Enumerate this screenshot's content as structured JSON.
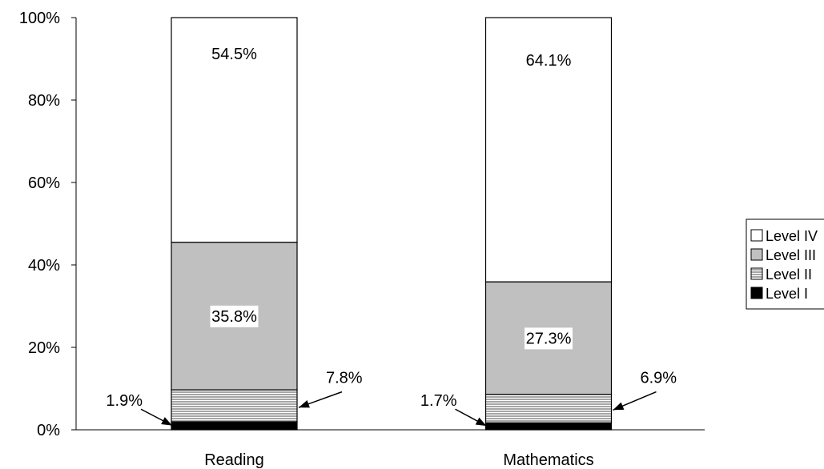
{
  "chart_data": {
    "type": "bar",
    "stacked": true,
    "categories": [
      "Reading",
      "Mathematics"
    ],
    "series": [
      {
        "name": "Level I",
        "values": [
          1.9,
          1.7
        ],
        "color": "#000000",
        "pattern": "solid"
      },
      {
        "name": "Level II",
        "values": [
          7.8,
          6.9
        ],
        "color": "#ffffff",
        "pattern": "horizontal-lines"
      },
      {
        "name": "Level III",
        "values": [
          35.8,
          27.3
        ],
        "color": "#c0c0c0",
        "pattern": "solid"
      },
      {
        "name": "Level IV",
        "values": [
          54.5,
          64.1
        ],
        "color": "#ffffff",
        "pattern": "solid"
      }
    ],
    "labels": {
      "Reading": {
        "Level I": "1.9%",
        "Level II": "7.8%",
        "Level III": "35.8%",
        "Level IV": "54.5%"
      },
      "Mathematics": {
        "Level I": "1.7%",
        "Level II": "6.9%",
        "Level III": "27.3%",
        "Level IV": "64.1%"
      }
    },
    "yticks": [
      "0%",
      "20%",
      "40%",
      "60%",
      "80%",
      "100%"
    ],
    "ylim": [
      0,
      100
    ],
    "legend_position": "right",
    "legend_order": [
      "Level IV",
      "Level III",
      "Level II",
      "Level I"
    ],
    "grid": false
  }
}
